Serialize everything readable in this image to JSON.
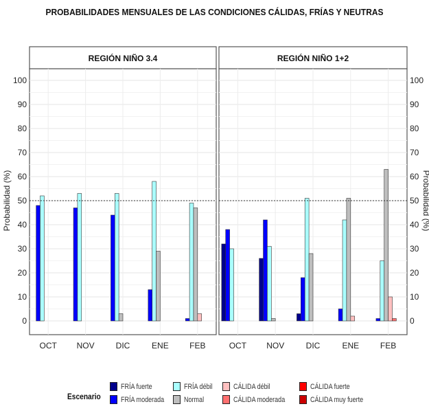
{
  "title": "PROBABILIDADES MENSUALES DE LAS CONDICIONES CÁLIDAS, FRÍAS Y NEUTRAS",
  "colors": {
    "fria_fuerte": "#00008b",
    "fria_moderada": "#0000ff",
    "fria_debil": "#aaffff",
    "normal": "#bebebe",
    "calida_debil": "#ffc0c0",
    "calida_moderada": "#ff7070",
    "calida_fuerte": "#ff0000",
    "calida_muy_fuerte": "#cc0000"
  },
  "legend": {
    "title": "Escenario",
    "items": [
      {
        "label": "FRÍA fuerte",
        "color_key": "fria_fuerte"
      },
      {
        "label": "FRÍA moderada",
        "color_key": "fria_moderada"
      },
      {
        "label": "FRÍA débil",
        "color_key": "fria_debil"
      },
      {
        "label": "Normal",
        "color_key": "normal"
      },
      {
        "label": "CÁLIDA débil",
        "color_key": "calida_debil"
      },
      {
        "label": "CÁLIDA moderada",
        "color_key": "calida_moderada"
      },
      {
        "label": "CÁLIDA fuerte",
        "color_key": "calida_fuerte"
      },
      {
        "label": "CÁLIDA muy fuerte",
        "color_key": "calida_muy_fuerte"
      }
    ]
  },
  "chart_data": [
    {
      "type": "bar",
      "title": "REGIÓN NIÑO 3.4",
      "categories": [
        "OCT",
        "NOV",
        "DIC",
        "ENE",
        "FEB"
      ],
      "ylabel": "Probabilidad (%)",
      "ylim": [
        0,
        100
      ],
      "yticks": [
        0,
        10,
        20,
        30,
        40,
        50,
        60,
        70,
        80,
        90,
        100
      ],
      "reference_line": 50,
      "grid": true,
      "series": [
        {
          "name": "FRÍA fuerte",
          "values": [
            0,
            0,
            0,
            0,
            0
          ]
        },
        {
          "name": "FRÍA moderada",
          "values": [
            48,
            47,
            44,
            13,
            1
          ]
        },
        {
          "name": "FRÍA débil",
          "values": [
            52,
            53,
            53,
            58,
            49
          ]
        },
        {
          "name": "Normal",
          "values": [
            0,
            0,
            3,
            29,
            47
          ]
        },
        {
          "name": "CÁLIDA débil",
          "values": [
            0,
            0,
            0,
            0,
            3
          ]
        },
        {
          "name": "CÁLIDA moderada",
          "values": [
            0,
            0,
            0,
            0,
            0
          ]
        },
        {
          "name": "CÁLIDA fuerte",
          "values": [
            0,
            0,
            0,
            0,
            0
          ]
        },
        {
          "name": "CÁLIDA muy fuerte",
          "values": [
            0,
            0,
            0,
            0,
            0
          ]
        }
      ]
    },
    {
      "type": "bar",
      "title": "REGIÓN NIÑO 1+2",
      "categories": [
        "OCT",
        "NOV",
        "DIC",
        "ENE",
        "FEB"
      ],
      "ylabel": "Probabilidad (%)",
      "ylim": [
        0,
        100
      ],
      "yticks": [
        0,
        10,
        20,
        30,
        40,
        50,
        60,
        70,
        80,
        90,
        100
      ],
      "reference_line": 50,
      "grid": true,
      "series": [
        {
          "name": "FRÍA fuerte",
          "values": [
            32,
            26,
            3,
            0,
            0
          ]
        },
        {
          "name": "FRÍA moderada",
          "values": [
            38,
            42,
            18,
            5,
            1
          ]
        },
        {
          "name": "FRÍA débil",
          "values": [
            30,
            31,
            51,
            42,
            25
          ]
        },
        {
          "name": "Normal",
          "values": [
            0,
            1,
            28,
            51,
            63
          ]
        },
        {
          "name": "CÁLIDA débil",
          "values": [
            0,
            0,
            0,
            2,
            10
          ]
        },
        {
          "name": "CÁLIDA moderada",
          "values": [
            0,
            0,
            0,
            0,
            1
          ]
        },
        {
          "name": "CÁLIDA fuerte",
          "values": [
            0,
            0,
            0,
            0,
            0
          ]
        },
        {
          "name": "CÁLIDA muy fuerte",
          "values": [
            0,
            0,
            0,
            0,
            0
          ]
        }
      ]
    }
  ]
}
